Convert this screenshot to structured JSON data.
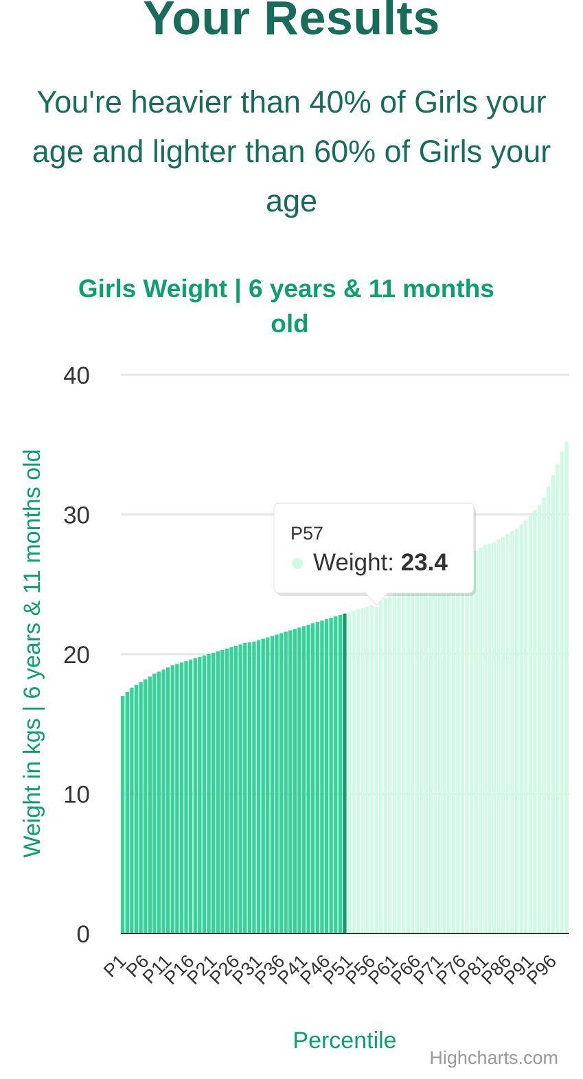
{
  "page": {
    "heading": "Your Results",
    "summary": "You're heavier than 40% of Girls your age and lighter than 60% of Girls your age",
    "credit": "Highcharts.com"
  },
  "tooltip": {
    "title": "P57",
    "label": "Weight: ",
    "value": "23.4"
  },
  "colors": {
    "below": "#34d399",
    "selected": "#0e9f6e",
    "above": "#d1fae5",
    "title": "#0e9f6e",
    "axis_label": "#0e9f6e"
  },
  "chart_data": {
    "type": "bar",
    "title": "Girls Weight | 6 years & 11 months old",
    "xlabel": "Percentile",
    "ylabel": "Weight in kgs | 6 years & 11 months old",
    "ylim": [
      0,
      40
    ],
    "yticks": [
      0,
      10,
      20,
      30,
      40
    ],
    "grid": true,
    "legend": "none",
    "categories": [
      "P1",
      "P2",
      "P3",
      "P4",
      "P5",
      "P6",
      "P7",
      "P8",
      "P9",
      "P10",
      "P11",
      "P12",
      "P13",
      "P14",
      "P15",
      "P16",
      "P17",
      "P18",
      "P19",
      "P20",
      "P21",
      "P22",
      "P23",
      "P24",
      "P25",
      "P26",
      "P27",
      "P28",
      "P29",
      "P30",
      "P31",
      "P32",
      "P33",
      "P34",
      "P35",
      "P36",
      "P37",
      "P38",
      "P39",
      "P40",
      "P41",
      "P42",
      "P43",
      "P44",
      "P45",
      "P46",
      "P47",
      "P48",
      "P49",
      "P50",
      "P51",
      "P52",
      "P53",
      "P54",
      "P55",
      "P56",
      "P57",
      "P58",
      "P59",
      "P60",
      "P61",
      "P62",
      "P63",
      "P64",
      "P65",
      "P66",
      "P67",
      "P68",
      "P69",
      "P70",
      "P71",
      "P72",
      "P73",
      "P74",
      "P75",
      "P76",
      "P77",
      "P78",
      "P79",
      "P80",
      "P81",
      "P82",
      "P83",
      "P84",
      "P85",
      "P86",
      "P87",
      "P88",
      "P89",
      "P90",
      "P91",
      "P92",
      "P93",
      "P94",
      "P95",
      "P96",
      "P97",
      "P98",
      "P99"
    ],
    "tick_labels": [
      "P1",
      "P6",
      "P11",
      "P16",
      "P21",
      "P26",
      "P31",
      "P36",
      "P41",
      "P46",
      "P51",
      "P56",
      "P61",
      "P66",
      "P71",
      "P76",
      "P81",
      "P86",
      "P91",
      "P96"
    ],
    "values": [
      17.0,
      17.3,
      17.6,
      17.8,
      18.0,
      18.2,
      18.4,
      18.6,
      18.75,
      18.9,
      19.05,
      19.2,
      19.3,
      19.4,
      19.5,
      19.6,
      19.7,
      19.8,
      19.9,
      20.0,
      20.1,
      20.2,
      20.3,
      20.4,
      20.5,
      20.6,
      20.7,
      20.8,
      20.85,
      20.9,
      21.0,
      21.1,
      21.2,
      21.3,
      21.4,
      21.5,
      21.6,
      21.7,
      21.8,
      21.9,
      22.0,
      22.1,
      22.2,
      22.3,
      22.4,
      22.5,
      22.6,
      22.7,
      22.8,
      22.9,
      22.95,
      23.1,
      23.2,
      23.3,
      23.4,
      23.5,
      23.4,
      23.8,
      24.0,
      24.2,
      24.4,
      24.6,
      24.8,
      25.0,
      25.2,
      25.3,
      25.4,
      25.5,
      25.6,
      25.8,
      26.0,
      26.2,
      26.4,
      26.6,
      26.7,
      26.8,
      27.0,
      27.2,
      27.4,
      27.6,
      27.8,
      27.9,
      28.0,
      28.2,
      28.4,
      28.6,
      28.8,
      29.0,
      29.3,
      29.6,
      29.9,
      30.3,
      30.7,
      31.2,
      32.0,
      32.8,
      33.6,
      34.5,
      35.2
    ],
    "selected_category": "P50",
    "tooltip_category": "P57"
  }
}
